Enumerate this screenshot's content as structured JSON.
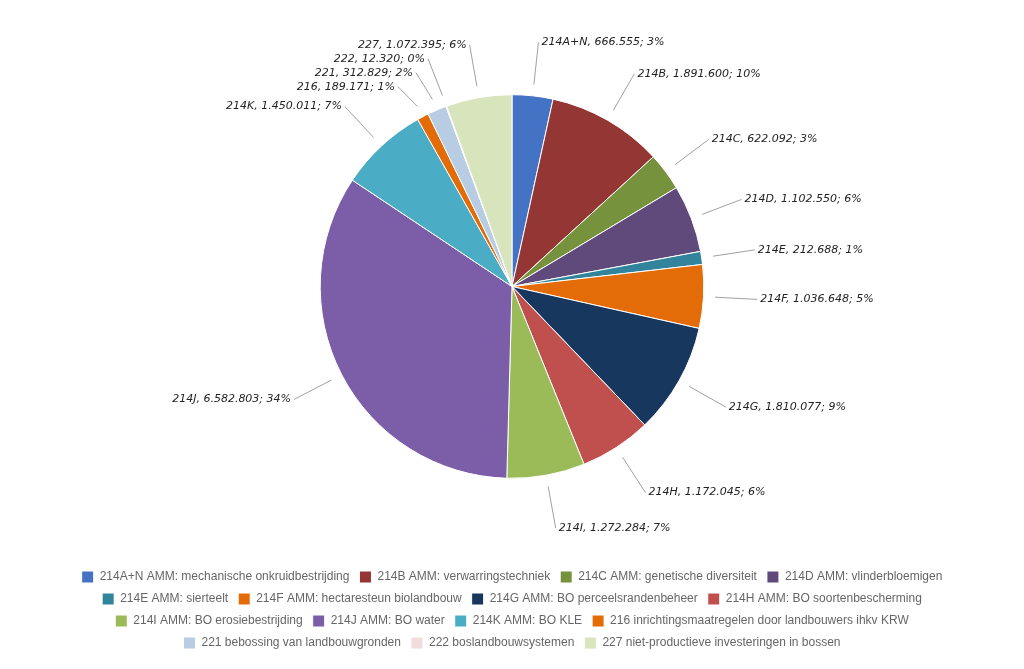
{
  "chart_data": {
    "type": "pie",
    "categories": [
      "214A+N AMM: mechanische onkruidbestrijding",
      "214B AMM: verwarringstechniek",
      "214C AMM: genetische diversiteit",
      "214D AMM: vlinderbloemigen",
      "214E AMM: sierteelt",
      "214F AMM: hectaresteun biolandbouw",
      "214G AMM: BO perceelsrandenbeheer",
      "214H AMM: BO soortenbescherming",
      "214I AMM: BO erosiebestrijding",
      "214J AMM: BO water",
      "214K AMM: BO KLE",
      "216 inrichtingsmaatregelen door landbouwers ihkv KRW",
      "221 bebossing van landbouwgronden",
      "222 boslandbouwsystemen",
      "227 niet-productieve investeringen in bossen"
    ],
    "values": [
      666555,
      1891600,
      622092,
      1102550,
      212688,
      1036648,
      1810077,
      1172045,
      1272284,
      6582803,
      1450011,
      189171,
      312829,
      12320,
      1072395
    ],
    "value_labels": [
      "214A+N, 666.555; 3%",
      "214B, 1.891.600; 10%",
      "214C, 622.092; 3%",
      "214D, 1.102.550; 6%",
      "214E, 212.688; 1%",
      "214F, 1.036.648; 5%",
      "214G, 1.810.077; 9%",
      "214H, 1.172.045; 6%",
      "214I, 1.272.284; 7%",
      "214J, 6.582.803; 34%",
      "214K, 1.450.011; 7%",
      "216, 189.171; 1%",
      "221, 312.829; 2%",
      "222, 12.320; 0%",
      "227, 1.072.395; 6%"
    ],
    "colors": [
      "#4472C4",
      "#943634",
      "#76923C",
      "#604a7b",
      "#31849B",
      "#E36C09",
      "#17375E",
      "#C0504D",
      "#9BBB59",
      "#7b5ea7",
      "#4BACC6",
      "#E36C09",
      "#B8CCE4",
      "#F2DCDB",
      "#D8E4BC"
    ],
    "data_labels": true,
    "legend": "bottom"
  }
}
